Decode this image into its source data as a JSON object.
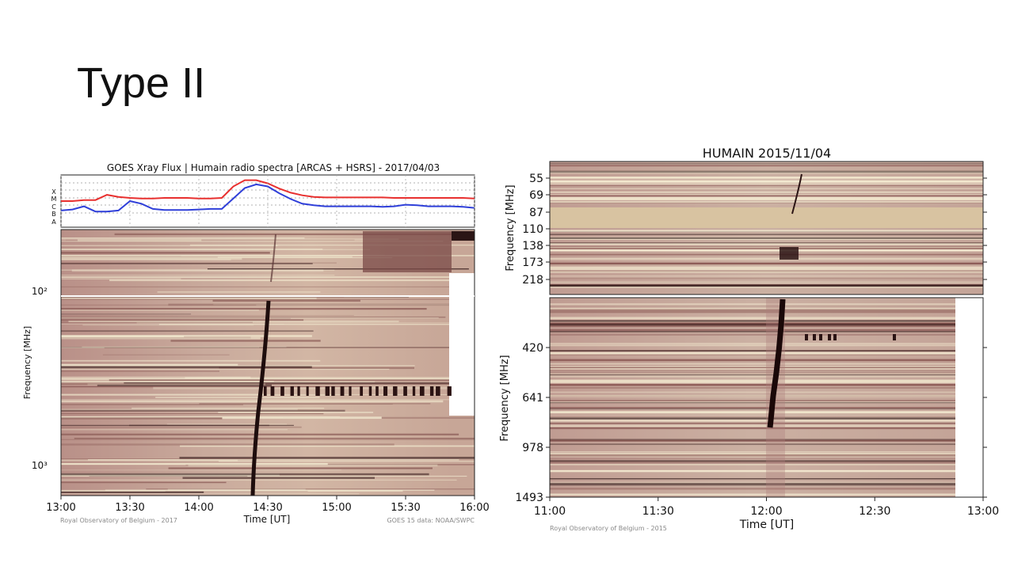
{
  "slide": {
    "title": "Type II"
  },
  "chart_data": [
    {
      "type": "heatmap",
      "title": "GOES Xray Flux | Humain radio spectra [ARCAS + HSRS] - 2017/04/03",
      "xlabel": "Time [UT]",
      "ylabel": "Frequency [MHz]",
      "x_ticks": [
        "13:00",
        "13:30",
        "14:00",
        "14:30",
        "15:00",
        "15:30",
        "16:00"
      ],
      "y_ticks": [
        "10²",
        "10³"
      ],
      "y_scale": "log",
      "credits": {
        "left": "Royal Observatory of Belgium - 2017",
        "right": "GOES 15 data: NOAA/SWPC"
      },
      "goes_panel": {
        "class_labels": [
          "X",
          "M",
          "C",
          "B",
          "A"
        ],
        "series": [
          {
            "color": "#e8302f",
            "values": [
              0.5,
              0.5,
              0.48,
              0.48,
              0.38,
              0.42,
              0.44,
              0.45,
              0.45,
              0.44,
              0.44,
              0.44,
              0.45,
              0.45,
              0.44,
              0.22,
              0.1,
              0.1,
              0.16,
              0.26,
              0.34,
              0.39,
              0.42,
              0.43,
              0.43,
              0.43,
              0.43,
              0.43,
              0.43,
              0.44,
              0.44,
              0.44,
              0.44,
              0.44,
              0.44,
              0.44,
              0.45
            ]
          },
          {
            "color": "#2f3fd9",
            "values": [
              0.68,
              0.66,
              0.6,
              0.7,
              0.7,
              0.68,
              0.5,
              0.55,
              0.65,
              0.67,
              0.67,
              0.67,
              0.66,
              0.65,
              0.65,
              0.45,
              0.25,
              0.18,
              0.22,
              0.35,
              0.46,
              0.55,
              0.58,
              0.6,
              0.6,
              0.6,
              0.6,
              0.6,
              0.61,
              0.6,
              0.57,
              0.58,
              0.6,
              0.6,
              0.6,
              0.61,
              0.63
            ]
          }
        ]
      },
      "colors": {
        "background": "#bfa095",
        "light": "#f2ead0",
        "dark": "#3a1f1f"
      }
    },
    {
      "type": "heatmap",
      "title": "HUMAIN 2015/11/04",
      "xlabel": "Time [UT]",
      "ylabel_top": "Frequency [MHz]",
      "ylabel_bottom": "Frequency [MHz]",
      "x_ticks": [
        "11:00",
        "11:30",
        "12:00",
        "12:30",
        "13:00"
      ],
      "y_ticks_top": [
        "55",
        "69",
        "87",
        "110",
        "138",
        "173",
        "218"
      ],
      "y_ticks_bottom": [
        "420",
        "641",
        "978",
        "1493"
      ],
      "credits": {
        "left": "Royal Observatory of Belgium - 2015"
      },
      "colors": {
        "background": "#c4a59b",
        "light": "#f5ecd2",
        "dark": "#2b1414",
        "band": "#d8c3a1"
      }
    }
  ]
}
